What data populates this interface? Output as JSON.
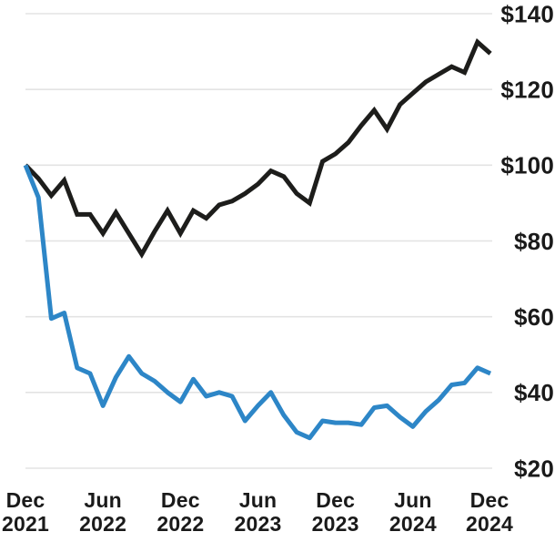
{
  "chart_data": {
    "type": "line",
    "title": "",
    "xlabel": "",
    "ylabel": "",
    "grid": "horizontal",
    "legend": "none",
    "ylim": [
      20,
      140
    ],
    "months_span": 36,
    "x_ticks": [
      {
        "month_index": 0,
        "line1": "Dec",
        "line2": "2021"
      },
      {
        "month_index": 6,
        "line1": "Jun",
        "line2": "2022"
      },
      {
        "month_index": 12,
        "line1": "Dec",
        "line2": "2022"
      },
      {
        "month_index": 18,
        "line1": "Jun",
        "line2": "2023"
      },
      {
        "month_index": 24,
        "line1": "Dec",
        "line2": "2023"
      },
      {
        "month_index": 30,
        "line1": "Jun",
        "line2": "2024"
      },
      {
        "month_index": 36,
        "line1": "Dec",
        "line2": "2024"
      }
    ],
    "y_ticks": [
      {
        "value": 20,
        "label": "$20"
      },
      {
        "value": 40,
        "label": "$40"
      },
      {
        "value": 60,
        "label": "$60"
      },
      {
        "value": 80,
        "label": "$80"
      },
      {
        "value": 100,
        "label": "$100"
      },
      {
        "value": 120,
        "label": "$120"
      },
      {
        "value": 140,
        "label": "$140"
      }
    ],
    "series": [
      {
        "name": "black",
        "color": "#1d1d1b",
        "values": [
          100,
          96.5,
          92,
          96,
          87,
          87,
          82,
          87.5,
          82,
          76.5,
          82.5,
          88,
          82,
          88,
          86,
          89.5,
          90.5,
          92.5,
          95,
          98.5,
          97,
          92.5,
          90,
          101,
          103,
          106,
          110.5,
          114.5,
          109.5,
          116,
          119,
          122,
          124,
          126,
          124.5,
          132.5,
          129.5
        ]
      },
      {
        "name": "blue",
        "color": "#2d86c7",
        "values": [
          100,
          91.5,
          59.5,
          61,
          46.5,
          45,
          36.5,
          44,
          49.5,
          45,
          43,
          40,
          37.5,
          43.5,
          39,
          40,
          39,
          32.5,
          36.5,
          40,
          34,
          29.5,
          28,
          32.5,
          32,
          32,
          31.5,
          36,
          36.5,
          33.5,
          31,
          35,
          38,
          42,
          42.5,
          46.5,
          45
        ]
      }
    ]
  },
  "colors": {
    "background": "#ffffff",
    "gridline": "#e3e3e3",
    "text": "#1a1a1a"
  }
}
